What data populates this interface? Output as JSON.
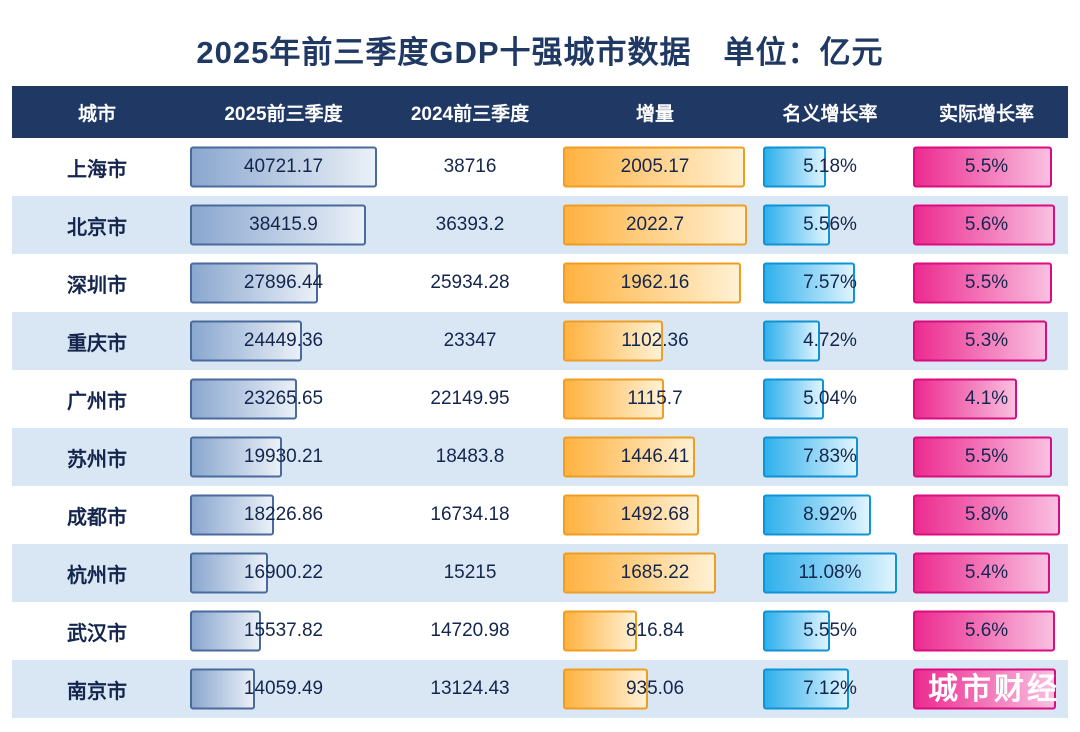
{
  "title": "2025年前三季度GDP十强城市数据　单位：亿元",
  "watermark": "城市财经",
  "colors": {
    "header-bg": "#1F3864",
    "title-color": "#1F3864",
    "alt-row-bg": "#D9E6F4",
    "text-color": "#14264E",
    "bar2025-from": "#8AA7CF",
    "bar2025-to": "#EAF0F7",
    "bar2025-border": "#4A6A9D",
    "delta-from": "#FFB240",
    "delta-to": "#FFF1D4",
    "delta-border": "#F09D23",
    "nominal-from": "#2FB0EC",
    "nominal-to": "#DFF4FE",
    "nominal-border": "#0E93D4",
    "real-from": "#EC2B8F",
    "real-to": "#F9BFE0",
    "real-border": "#DB0C7F"
  },
  "chart_data": {
    "type": "table",
    "title": "2025年前三季度GDP十强城市数据　单位：亿元",
    "unit": "亿元",
    "columns": [
      "城市",
      "2025前三季度",
      "2024前三季度",
      "增量",
      "名义增长率",
      "实际增长率"
    ],
    "bar_columns": [
      "2025前三季度",
      "增量",
      "名义增长率",
      "实际增长率"
    ],
    "bar_scaling": "bar width proportional to value, scaled zero-to-column-max",
    "note": "南京市实际增长率数值被右下角水印遮挡，不可见",
    "rows": [
      {
        "city": "上海市",
        "gdp_2025_q3": 40721.17,
        "gdp_2024_q3": 38716,
        "increase": 2005.17,
        "nominal_growth_pct": 5.18,
        "real_growth_pct": 5.5
      },
      {
        "city": "北京市",
        "gdp_2025_q3": 38415.9,
        "gdp_2024_q3": 36393.2,
        "increase": 2022.7,
        "nominal_growth_pct": 5.56,
        "real_growth_pct": 5.6
      },
      {
        "city": "深圳市",
        "gdp_2025_q3": 27896.44,
        "gdp_2024_q3": 25934.28,
        "increase": 1962.16,
        "nominal_growth_pct": 7.57,
        "real_growth_pct": 5.5
      },
      {
        "city": "重庆市",
        "gdp_2025_q3": 24449.36,
        "gdp_2024_q3": 23347,
        "increase": 1102.36,
        "nominal_growth_pct": 4.72,
        "real_growth_pct": 5.3
      },
      {
        "city": "广州市",
        "gdp_2025_q3": 23265.65,
        "gdp_2024_q3": 22149.95,
        "increase": 1115.7,
        "nominal_growth_pct": 5.04,
        "real_growth_pct": 4.1
      },
      {
        "city": "苏州市",
        "gdp_2025_q3": 19930.21,
        "gdp_2024_q3": 18483.8,
        "increase": 1446.41,
        "nominal_growth_pct": 7.83,
        "real_growth_pct": 5.5
      },
      {
        "city": "成都市",
        "gdp_2025_q3": 18226.86,
        "gdp_2024_q3": 16734.18,
        "increase": 1492.68,
        "nominal_growth_pct": 8.92,
        "real_growth_pct": 5.8
      },
      {
        "city": "杭州市",
        "gdp_2025_q3": 16900.22,
        "gdp_2024_q3": 15215,
        "increase": 1685.22,
        "nominal_growth_pct": 11.08,
        "real_growth_pct": 5.4
      },
      {
        "city": "武汉市",
        "gdp_2025_q3": 15537.82,
        "gdp_2024_q3": 14720.98,
        "increase": 816.84,
        "nominal_growth_pct": 5.55,
        "real_growth_pct": 5.6
      },
      {
        "city": "南京市",
        "gdp_2025_q3": 14059.49,
        "gdp_2024_q3": 13124.43,
        "increase": 935.06,
        "nominal_growth_pct": 7.12,
        "real_growth_pct": null
      }
    ]
  }
}
